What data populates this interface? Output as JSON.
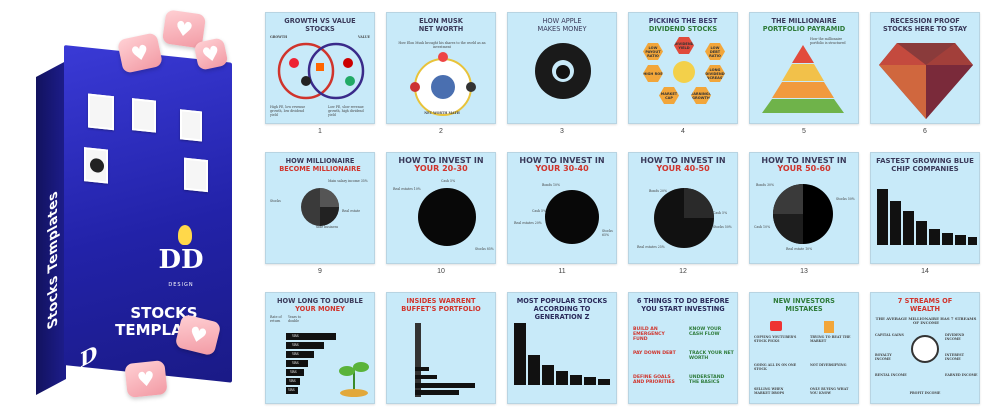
{
  "box": {
    "spine_title": "Stocks Templates",
    "front_title": "STOCKS TEMPLATES",
    "logo": "DD",
    "logo_sub": "DESIGN",
    "heart": "♥"
  },
  "templates": [
    {
      "n": "1",
      "title_a": "GROWTH VS VALUE",
      "title_b": "STOCKS",
      "sub_left": "GROWTH",
      "sub_right": "VALUE",
      "note_left": "High PE, low revenue growth, low dividend yield",
      "note_right": "Low PE, slow revenue growth, high dividend yield"
    },
    {
      "n": "2",
      "title_a": "ELON MUSK",
      "title_b": "NET WORTH",
      "curve_note": "How Elon Musk brought his shares to the world as an investment",
      "bottom_note": "NET WORTH MATH"
    },
    {
      "n": "3",
      "title_a": "HOW APPLE",
      "title_b": "MAKES MONEY"
    },
    {
      "n": "4",
      "title_a": "PICKING THE BEST",
      "title_b": "DIVIDEND STOCKS",
      "hexes": [
        "LOW PAYOUT RATIO",
        "DIVIDEND YIELD",
        "LOW DEBT RATIO",
        "LONG DIVIDEND INCREASE",
        "MARKET CAP",
        "EARNINGS GROWTH",
        "HIGH ROE"
      ]
    },
    {
      "n": "5",
      "title_a": "THE MILLIONAIRE",
      "title_b": "PORTFOLIO PAYRAMID",
      "note": "How the millionaire portfolio is structured"
    },
    {
      "n": "6",
      "title_a": "RECESSION PROOF",
      "title_b": "STOCKS HERE TO STAY"
    },
    {
      "n": "9",
      "title_a": "HOW MILLIONAIRE",
      "title_b": "BECOME MILLIONAIRE",
      "pie_labels": [
        "Main salary income 35%",
        "Stocks",
        "Real estate",
        "Side business"
      ]
    },
    {
      "n": "10",
      "title_a": "HOW TO INVEST IN",
      "title_b": "YOUR 20-30",
      "pie_labels": [
        "Cash 5%",
        "Real estates 10%",
        "Stocks 85%"
      ]
    },
    {
      "n": "11",
      "title_a": "HOW TO INVEST IN",
      "title_b": "YOUR 30-40",
      "pie_labels": [
        "Bonds 10%",
        "Cash 5%",
        "Real estates 20%",
        "Stocks 65%"
      ]
    },
    {
      "n": "12",
      "title_a": "HOW TO INVEST IN",
      "title_b": "YOUR 40-50",
      "pie_labels": [
        "Bonds 20%",
        "Cash 5%",
        "Real estates 25%",
        "Stocks 50%"
      ]
    },
    {
      "n": "13",
      "title_a": "HOW TO INVEST IN",
      "title_b": "YOUR 50-60",
      "pie_labels": [
        "Stocks 50%",
        "Bonds 30%",
        "Cash 10%",
        "Real estate 10%"
      ]
    },
    {
      "n": "14",
      "title_a": "FASTEST GROWING BLUE",
      "title_b": "CHIP COMPANIES"
    },
    {
      "n": "",
      "title_a": "HOW LONG TO DOUBLE",
      "title_b": "YOUR MONEY",
      "col_a": "Rate of return",
      "col_b": "Years to double",
      "bar_labels": [
        "YRS",
        "YRS",
        "YRS",
        "YRS",
        "YRS",
        "YRS",
        "YRS"
      ]
    },
    {
      "n": "",
      "title_a": "INSIDES WARRENT",
      "title_b": "BUFFET'S PORTFOLIO"
    },
    {
      "n": "",
      "title_a": "MOST POPULAR STOCKS",
      "title_b": "ACCORDING TO GENERATION Z"
    },
    {
      "n": "",
      "title_a": "6 THINGS TO DO BEFORE",
      "title_b": "YOU START INVESTING",
      "items": [
        "BUILD AN EMERGENCY FUND",
        "KNOW YOUR CASH FLOW",
        "PAY DOWN DEBT",
        "TRACK YOUR NET WORTH",
        "DEFINE GOALS AND PRIORITIES",
        "UNDERSTAND THE BASICS"
      ]
    },
    {
      "n": "",
      "title_a": "NEW INVESTORS",
      "title_b": "MISTAKES",
      "items": [
        "COPYING YOUTUBER'S STOCK PICKS",
        "TRYING TO BEAT THE MARKET",
        "GOING ALL IN ON ONE STOCK",
        "NOT DIVERSIFYING",
        "SELLING WHEN MARKET DROPS",
        "ONLY BUYING WHAT YOU KNOW"
      ]
    },
    {
      "n": "",
      "title_a": "7 STREAMS OF",
      "title_b": "WEALTH",
      "subtitle": "THE AVERAGE MILLIONAIRE HAS 7 STREAMS OF INCOME",
      "items": [
        "CAPITAL GAINS",
        "DIVIDEND INCOME",
        "ROYALTY INCOME",
        "INTEREST INCOME",
        "RENTAL INCOME",
        "EARNED INCOME",
        "PROFIT INCOME"
      ]
    }
  ],
  "colors": {
    "card_bg": "#c8eaf9",
    "title_red": "#d0342c",
    "box_blue": "#2a2abb"
  }
}
